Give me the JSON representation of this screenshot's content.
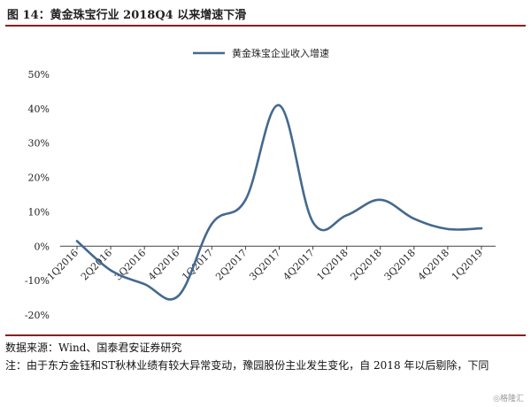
{
  "header": {
    "title": "图 14：黄金珠宝行业 2018Q4 以来增速下滑"
  },
  "footer": {
    "source": "数据来源：Wind、国泰君安证券研究",
    "note": "注：由于东方金钰和ST秋林业绩有较大异常变动，豫园股份主业发生变化，自 2018 年以后剔除，下同"
  },
  "watermark": "◎格隆汇",
  "colors": {
    "line": "#44698f",
    "accent": "#8a1f1f"
  },
  "chart_data": {
    "type": "line",
    "categories": [
      "1Q2016",
      "2Q2016",
      "3Q2016",
      "4Q2016",
      "1Q2017",
      "2Q2017",
      "3Q2017",
      "4Q2017",
      "1Q2018",
      "2Q2018",
      "3Q2018",
      "4Q2018",
      "1Q2019"
    ],
    "series": [
      {
        "name": "黄金珠宝企业收入增速",
        "values": [
          1.5,
          -7,
          -11,
          -14.5,
          6.5,
          13.5,
          41,
          7,
          9,
          13.5,
          8,
          5,
          5.2
        ]
      }
    ],
    "yticks": [
      "50%",
      "40%",
      "30%",
      "20%",
      "10%",
      "0%",
      "-10%",
      "-20%"
    ],
    "ylim": [
      -20,
      50
    ],
    "legend_position": "top-center",
    "grid": false
  }
}
